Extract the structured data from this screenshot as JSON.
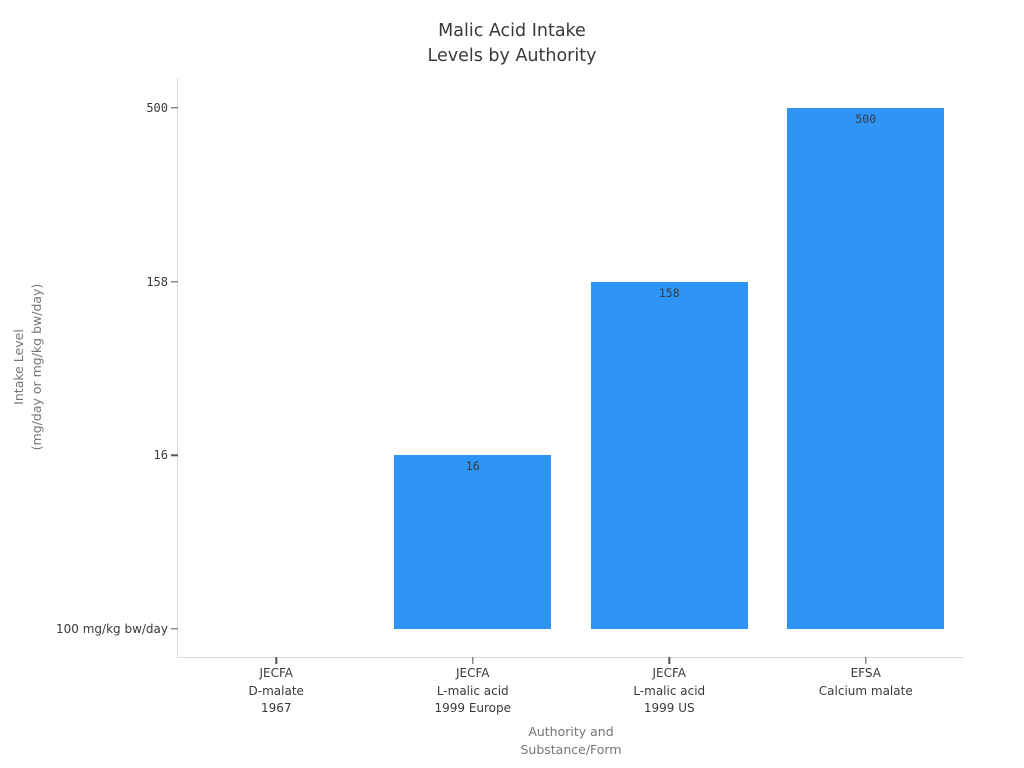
{
  "chart_data": {
    "type": "bar",
    "title_lines": [
      "Malic Acid Intake",
      "Levels by Authority"
    ],
    "title": "Malic Acid Intake Levels by Authority",
    "xlabel_lines": [
      "Authority and",
      "Substance/Form"
    ],
    "xlabel": "Authority and Substance/Form",
    "ylabel_lines": [
      "Intake Level",
      "(mg/day or mg/kg bw/day)"
    ],
    "ylabel": "Intake Level (mg/day or mg/kg bw/day)",
    "ytick_labels": [
      "100 mg/kg bw/day",
      "16",
      "158",
      "500"
    ],
    "ytick_numeric_flags": [
      false,
      true,
      true,
      true
    ],
    "categories": [
      {
        "label_lines": [
          "JECFA",
          "D-malate",
          "1967"
        ],
        "value": "100 mg/kg bw/day",
        "level": 0,
        "bar_label": ""
      },
      {
        "label_lines": [
          "JECFA",
          "L-malic acid",
          "1999 Europe"
        ],
        "value": 16,
        "level": 1,
        "bar_label": "16"
      },
      {
        "label_lines": [
          "JECFA",
          "L-malic acid",
          "1999 US"
        ],
        "value": 158,
        "level": 2,
        "bar_label": "158"
      },
      {
        "label_lines": [
          "EFSA",
          "Calcium malate"
        ],
        "value": 500,
        "level": 3,
        "bar_label": "500"
      }
    ],
    "colors": {
      "bar": "#2E94F5",
      "spine": "#d9d9d9",
      "tick": "#555555",
      "text": "#3a3a3a",
      "muted": "#757575",
      "background": "#ffffff"
    },
    "layout": {
      "grid": false,
      "legend": "none",
      "y_scale": "evenly spaced ordinal levels 0-3 (rank spacing, not linear value scale)",
      "bar_label_position": "inside-top"
    }
  }
}
